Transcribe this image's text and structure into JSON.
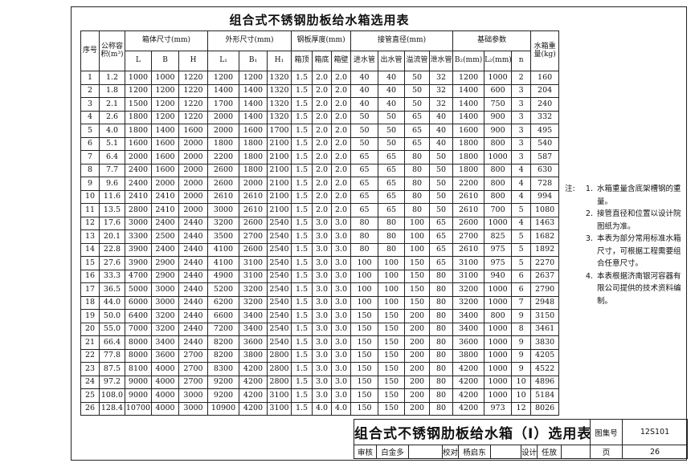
{
  "title": "组合式不锈钢肋板给水箱选用表",
  "table": {
    "header_top": [
      "序号",
      "公称容积(m³)",
      "箱体尺寸(mm)",
      "外形尺寸(mm)",
      "钢板厚度(mm)",
      "接管直径(mm)",
      "基础参数",
      "水箱重量(kg)"
    ],
    "header_sub": [
      "L",
      "B",
      "H",
      "L₁",
      "B₁",
      "H₁",
      "箱顶",
      "箱底",
      "箱壁",
      "进水管",
      "出水管",
      "溢流管",
      "泄水管",
      "B₂(mm)",
      "L₂(mm)",
      "n"
    ],
    "rows": [
      [
        "1",
        "1.2",
        "1000",
        "1000",
        "1220",
        "1200",
        "1200",
        "1320",
        "1.5",
        "2.0",
        "2.0",
        "40",
        "40",
        "50",
        "32",
        "1200",
        "1000",
        "2",
        "160"
      ],
      [
        "2",
        "1.8",
        "1200",
        "1200",
        "1220",
        "1400",
        "1400",
        "1320",
        "1.5",
        "2.0",
        "2.0",
        "40",
        "40",
        "50",
        "32",
        "1400",
        "600",
        "3",
        "204"
      ],
      [
        "3",
        "2.1",
        "1500",
        "1200",
        "1220",
        "1700",
        "1400",
        "1320",
        "1.5",
        "2.0",
        "2.0",
        "40",
        "40",
        "50",
        "32",
        "1400",
        "750",
        "3",
        "240"
      ],
      [
        "4",
        "2.6",
        "1800",
        "1200",
        "1220",
        "2000",
        "1400",
        "1320",
        "1.5",
        "2.0",
        "2.0",
        "50",
        "50",
        "65",
        "40",
        "1400",
        "900",
        "3",
        "332"
      ],
      [
        "5",
        "4.0",
        "1800",
        "1400",
        "1600",
        "2000",
        "1600",
        "1700",
        "1.5",
        "2.0",
        "2.0",
        "50",
        "50",
        "65",
        "40",
        "1600",
        "900",
        "3",
        "495"
      ],
      [
        "6",
        "5.1",
        "1600",
        "1600",
        "2000",
        "1800",
        "1800",
        "2100",
        "1.5",
        "2.0",
        "2.0",
        "50",
        "50",
        "65",
        "40",
        "1800",
        "800",
        "3",
        "540"
      ],
      [
        "7",
        "6.4",
        "2000",
        "1600",
        "2000",
        "2200",
        "1800",
        "2100",
        "1.5",
        "2.0",
        "2.0",
        "65",
        "65",
        "80",
        "50",
        "1800",
        "1000",
        "3",
        "587"
      ],
      [
        "8",
        "7.7",
        "2400",
        "1600",
        "2000",
        "2600",
        "1800",
        "2100",
        "1.5",
        "2.0",
        "2.0",
        "65",
        "65",
        "80",
        "50",
        "1800",
        "800",
        "4",
        "630"
      ],
      [
        "9",
        "9.6",
        "2400",
        "2000",
        "2000",
        "2600",
        "2000",
        "2100",
        "1.5",
        "2.0",
        "2.0",
        "65",
        "65",
        "80",
        "50",
        "2200",
        "800",
        "4",
        "728"
      ],
      [
        "10",
        "11.6",
        "2410",
        "2410",
        "2000",
        "2610",
        "2610",
        "2100",
        "1.5",
        "2.0",
        "2.0",
        "65",
        "65",
        "80",
        "50",
        "2610",
        "800",
        "4",
        "994"
      ],
      [
        "11",
        "13.5",
        "2800",
        "2410",
        "2000",
        "3000",
        "2610",
        "2100",
        "1.5",
        "2.0",
        "2.0",
        "65",
        "65",
        "80",
        "50",
        "2610",
        "700",
        "5",
        "1080"
      ],
      [
        "12",
        "17.6",
        "3000",
        "2400",
        "2440",
        "3200",
        "2600",
        "2540",
        "1.5",
        "3.0",
        "3.0",
        "80",
        "80",
        "100",
        "65",
        "2600",
        "1000",
        "4",
        "1463"
      ],
      [
        "13",
        "20.1",
        "3300",
        "2500",
        "2440",
        "3500",
        "2700",
        "2540",
        "1.5",
        "3.0",
        "3.0",
        "80",
        "80",
        "100",
        "65",
        "2700",
        "825",
        "5",
        "1682"
      ],
      [
        "14",
        "22.8",
        "3900",
        "2400",
        "2440",
        "4100",
        "2600",
        "2540",
        "1.5",
        "3.0",
        "3.0",
        "80",
        "80",
        "100",
        "65",
        "2610",
        "975",
        "5",
        "1892"
      ],
      [
        "15",
        "27.6",
        "3900",
        "2900",
        "2440",
        "4100",
        "3100",
        "2540",
        "1.5",
        "3.0",
        "3.0",
        "100",
        "100",
        "150",
        "65",
        "3100",
        "975",
        "5",
        "2270"
      ],
      [
        "16",
        "33.3",
        "4700",
        "2900",
        "2440",
        "4900",
        "3100",
        "2540",
        "1.5",
        "3.0",
        "3.0",
        "100",
        "100",
        "150",
        "80",
        "3100",
        "940",
        "6",
        "2637"
      ],
      [
        "17",
        "36.5",
        "5000",
        "3000",
        "2440",
        "5200",
        "3200",
        "2540",
        "1.5",
        "3.0",
        "3.0",
        "100",
        "100",
        "150",
        "80",
        "3200",
        "1000",
        "6",
        "2790"
      ],
      [
        "18",
        "44.0",
        "6000",
        "3000",
        "2440",
        "6200",
        "3200",
        "2540",
        "1.5",
        "3.0",
        "3.0",
        "100",
        "100",
        "150",
        "80",
        "3200",
        "1000",
        "7",
        "2948"
      ],
      [
        "19",
        "50.0",
        "6400",
        "3200",
        "2440",
        "6600",
        "3400",
        "2540",
        "1.5",
        "3.0",
        "3.0",
        "150",
        "150",
        "200",
        "80",
        "3400",
        "800",
        "9",
        "3150"
      ],
      [
        "20",
        "55.0",
        "7000",
        "3200",
        "2440",
        "7200",
        "3400",
        "2540",
        "1.5",
        "3.0",
        "3.0",
        "150",
        "150",
        "200",
        "80",
        "3400",
        "1000",
        "8",
        "3461"
      ],
      [
        "21",
        "66.4",
        "8000",
        "3400",
        "2440",
        "8200",
        "3600",
        "2540",
        "1.5",
        "3.0",
        "3.0",
        "150",
        "150",
        "200",
        "80",
        "3600",
        "1000",
        "9",
        "3830"
      ],
      [
        "22",
        "77.8",
        "8000",
        "3600",
        "2700",
        "8200",
        "3800",
        "2800",
        "1.5",
        "3.0",
        "3.0",
        "150",
        "150",
        "200",
        "80",
        "3800",
        "1000",
        "9",
        "4205"
      ],
      [
        "23",
        "87.5",
        "8100",
        "4000",
        "2700",
        "8300",
        "4200",
        "2800",
        "1.5",
        "3.0",
        "3.0",
        "150",
        "150",
        "200",
        "80",
        "4200",
        "1000",
        "9",
        "4522"
      ],
      [
        "24",
        "97.2",
        "9000",
        "4000",
        "2700",
        "9200",
        "4200",
        "2800",
        "1.5",
        "3.0",
        "3.0",
        "150",
        "150",
        "200",
        "80",
        "4200",
        "1000",
        "10",
        "4896"
      ],
      [
        "25",
        "108.0",
        "9000",
        "4000",
        "3000",
        "9200",
        "4200",
        "3100",
        "1.5",
        "3.0",
        "3.0",
        "150",
        "150",
        "200",
        "80",
        "4200",
        "1000",
        "10",
        "5184"
      ],
      [
        "26",
        "128.4",
        "10700",
        "4000",
        "3000",
        "10900",
        "4200",
        "3100",
        "1.5",
        "4.0",
        "4.0",
        "150",
        "150",
        "200",
        "80",
        "4200",
        "973",
        "12",
        "8026"
      ]
    ]
  },
  "notes": {
    "label": "注:",
    "items": [
      "水箱重量含底架槽钢的重量。",
      "接管直径和位置以设计院图纸为准。",
      "本表为部分常用标准水箱尺寸，可根据工程需要组合任意尺寸。",
      "本表根据济南银河容器有限公司提供的技术资料编制。"
    ]
  },
  "title_block": {
    "drawing_title": "组合式不锈钢肋板给水箱（I）选用表",
    "atlas_label": "图集号",
    "atlas_number": "12S101",
    "review_label": "审核",
    "reviewer": "白金多",
    "check_label": "校对",
    "checker": "杨启东",
    "design_label": "设计",
    "designer": "任放",
    "page_label": "页",
    "page_number": "26"
  }
}
